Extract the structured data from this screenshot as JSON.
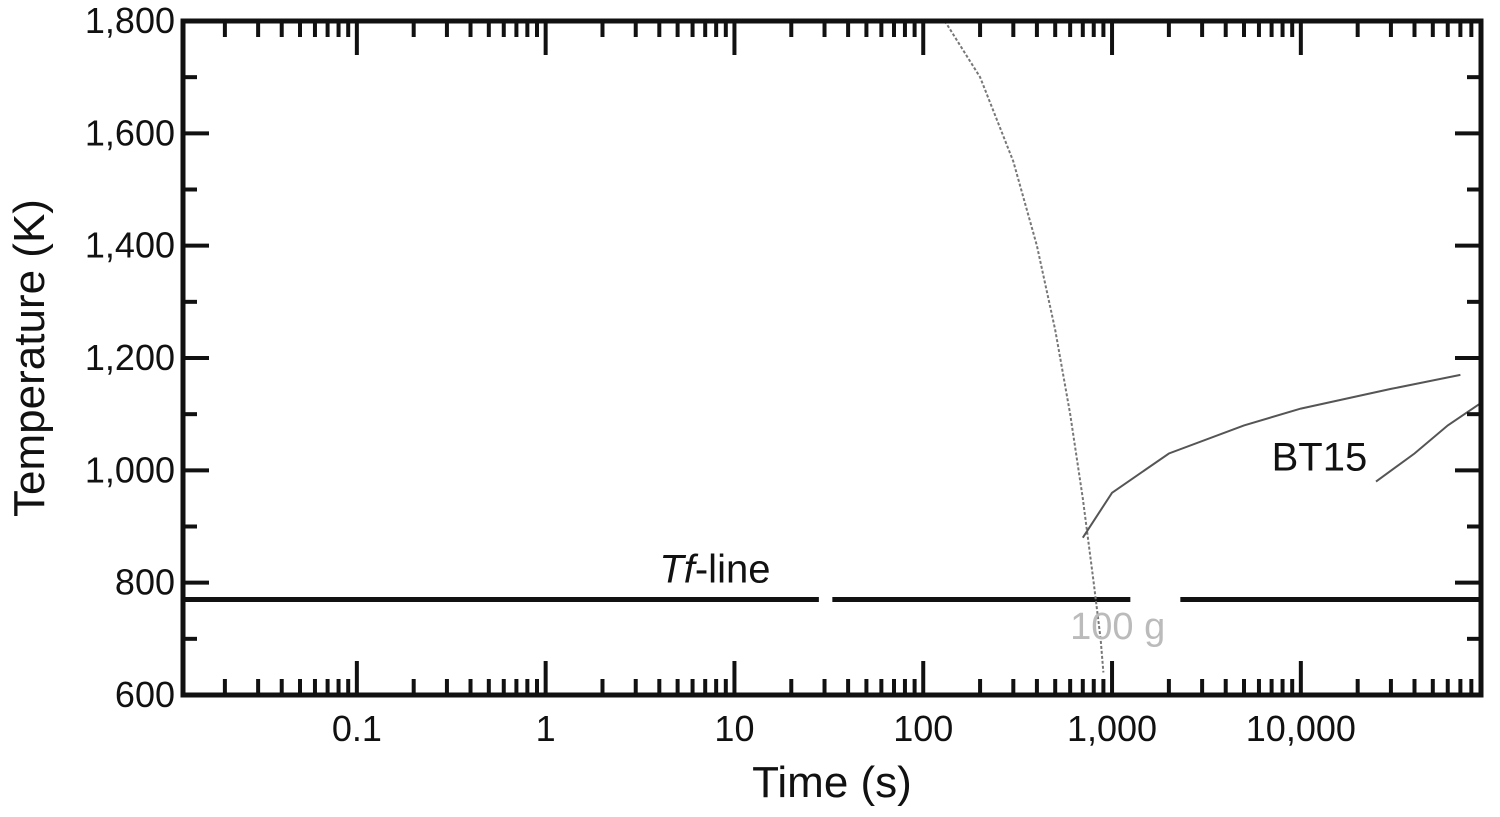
{
  "chart_data": {
    "type": "line",
    "xlabel": "Time (s)",
    "ylabel": "Temperature (K)",
    "xscale": "log",
    "xlim": [
      0.012,
      90000
    ],
    "ylim": [
      600,
      1800
    ],
    "x_ticks": [
      0.1,
      1,
      10,
      100,
      1000,
      10000
    ],
    "x_tick_labels": [
      "0.1",
      "1",
      "10",
      "100",
      "1,000",
      "10,000"
    ],
    "y_ticks": [
      600,
      800,
      1000,
      1200,
      1400,
      1600,
      1800
    ],
    "y_tick_labels": [
      "600",
      "800",
      "1,000",
      "1,200",
      "1,400",
      "1,600",
      "1,800"
    ],
    "grid": false,
    "series": [
      {
        "name": "Tf-line",
        "style": "solid-thick",
        "points": [
          [
            0.012,
            770
          ],
          [
            30,
            770
          ],
          [
            32,
            770
          ],
          [
            1200,
            770
          ],
          [
            2300,
            770
          ],
          [
            90000,
            770
          ]
        ],
        "gaps": [
          [
            28,
            33
          ],
          [
            1250,
            2300
          ]
        ]
      },
      {
        "name": "",
        "style": "thin-dotted",
        "points": [
          [
            130,
            1800
          ],
          [
            200,
            1700
          ],
          [
            300,
            1550
          ],
          [
            400,
            1400
          ],
          [
            500,
            1250
          ],
          [
            600,
            1100
          ],
          [
            700,
            950
          ],
          [
            800,
            800
          ],
          [
            870,
            700
          ],
          [
            900,
            640
          ]
        ]
      },
      {
        "name": "BT15",
        "style": "thin",
        "points": [
          [
            700,
            880
          ],
          [
            1000,
            960
          ],
          [
            2000,
            1030
          ],
          [
            5000,
            1080
          ],
          [
            10000,
            1110
          ],
          [
            30000,
            1145
          ],
          [
            70000,
            1170
          ]
        ]
      },
      {
        "name": "",
        "style": "thin",
        "points": [
          [
            25000,
            980
          ],
          [
            40000,
            1030
          ],
          [
            60000,
            1080
          ],
          [
            90000,
            1120
          ]
        ]
      }
    ],
    "annotations": [
      {
        "text_italic": "Tf",
        "text": "-line",
        "x": 4,
        "y": 800
      },
      {
        "text": "BT15",
        "x": 7000,
        "y": 1000
      },
      {
        "text": "100 g",
        "x": 600,
        "y": 700,
        "faint": true
      }
    ]
  }
}
